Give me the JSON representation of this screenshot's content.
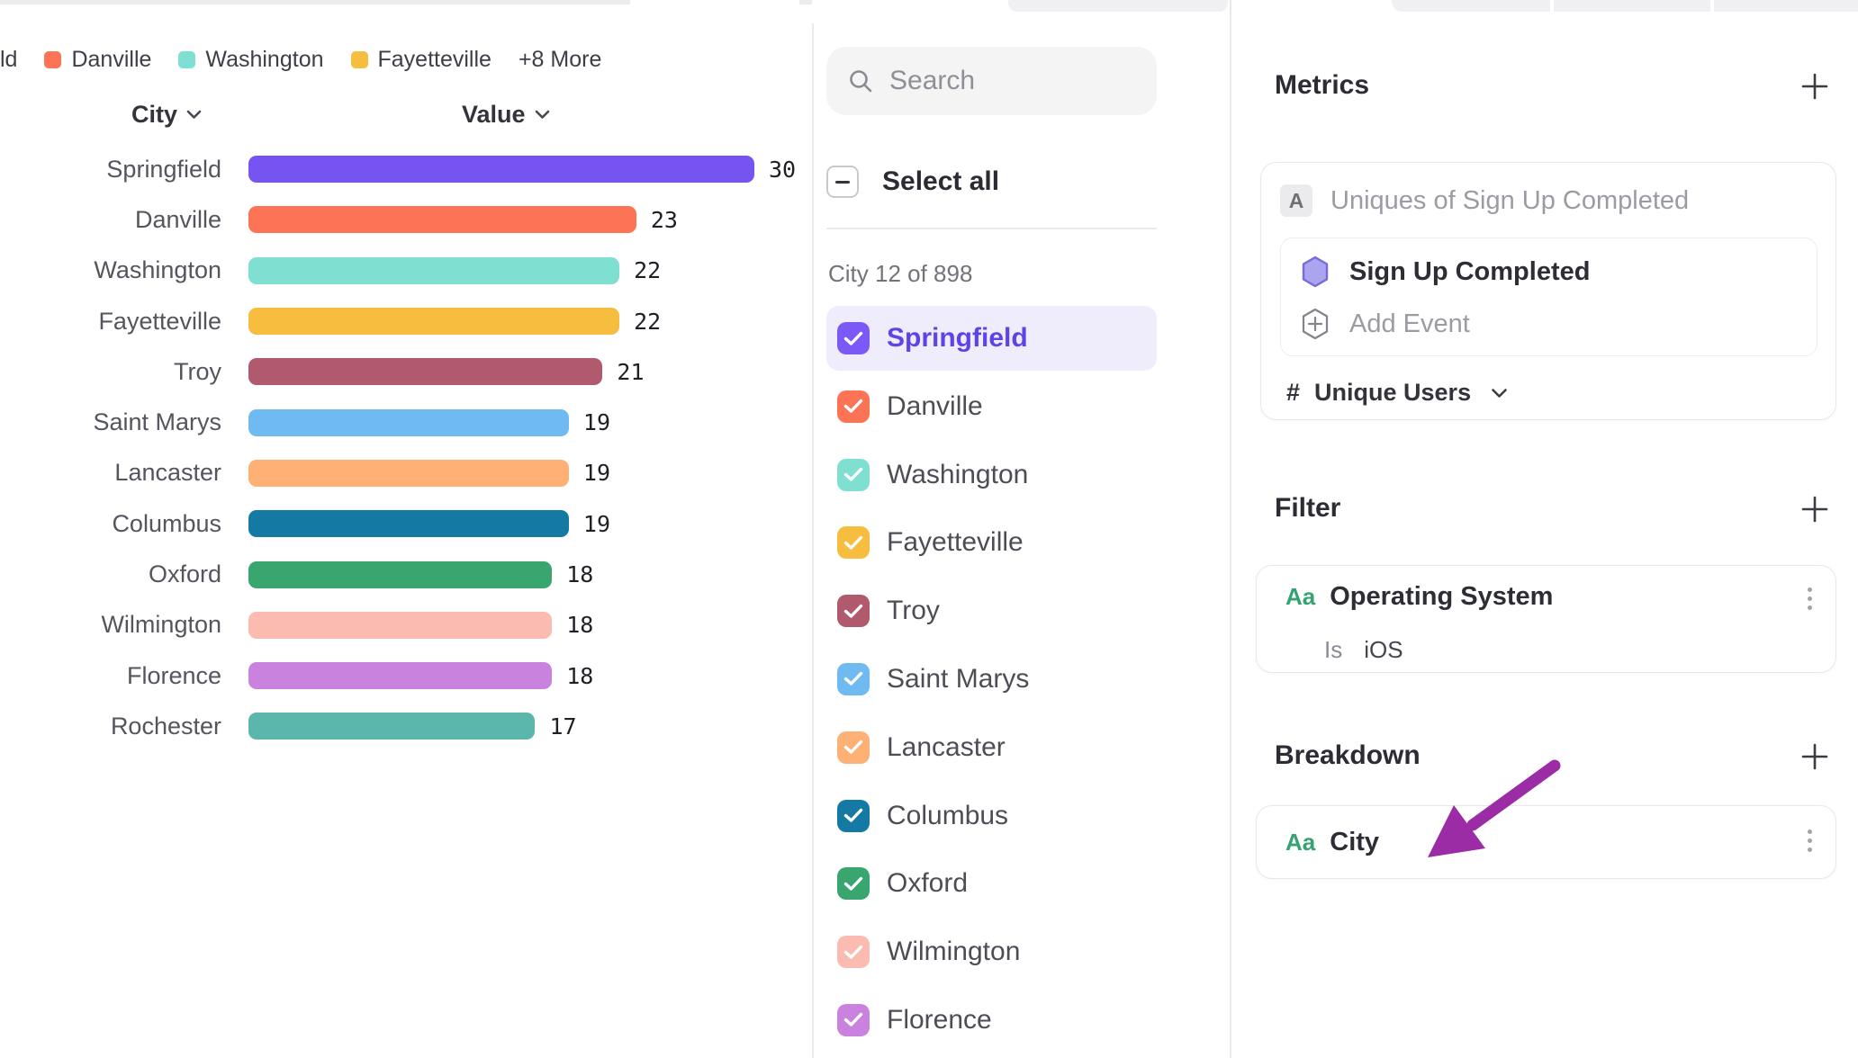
{
  "chart": {
    "legend": {
      "overflow_label": "ld",
      "items": [
        {
          "label": "Danville",
          "color": "#FC7356"
        },
        {
          "label": "Washington",
          "color": "#7FDFD0"
        },
        {
          "label": "Fayetteville",
          "color": "#F6BD3E"
        }
      ],
      "more_label": "+8 More"
    },
    "columns": {
      "city": "City",
      "value": "Value"
    }
  },
  "chart_data": {
    "type": "bar",
    "orientation": "horizontal",
    "title": "",
    "xlabel": "Value",
    "ylabel": "City",
    "xlim": [
      0,
      30
    ],
    "grid": false,
    "legend_position": "top",
    "categories": [
      "Springfield",
      "Danville",
      "Washington",
      "Fayetteville",
      "Troy",
      "Saint Marys",
      "Lancaster",
      "Columbus",
      "Oxford",
      "Wilmington",
      "Florence",
      "Rochester"
    ],
    "values": [
      30,
      23,
      22,
      22,
      21,
      19,
      19,
      19,
      18,
      18,
      18,
      17
    ],
    "colors": [
      "#7554F2",
      "#FC7356",
      "#7FDFD0",
      "#F6BD3E",
      "#B15A6D",
      "#6FBBF1",
      "#FEB075",
      "#147AA3",
      "#39A670",
      "#FBBBB1",
      "#C982DE",
      "#5BB6AB"
    ]
  },
  "picker": {
    "search_placeholder": "Search",
    "select_all_label": "Select all",
    "count_label": "City 12 of 898",
    "items": [
      {
        "label": "Springfield",
        "color": "#7A59F6",
        "checked": true,
        "selected": true
      },
      {
        "label": "Danville",
        "color": "#FC7356",
        "checked": true,
        "selected": false
      },
      {
        "label": "Washington",
        "color": "#7FDFD0",
        "checked": true,
        "selected": false
      },
      {
        "label": "Fayetteville",
        "color": "#F6BD3E",
        "checked": true,
        "selected": false
      },
      {
        "label": "Troy",
        "color": "#B15A6D",
        "checked": true,
        "selected": false
      },
      {
        "label": "Saint Marys",
        "color": "#6FBBF1",
        "checked": true,
        "selected": false
      },
      {
        "label": "Lancaster",
        "color": "#FEB075",
        "checked": true,
        "selected": false
      },
      {
        "label": "Columbus",
        "color": "#147AA3",
        "checked": true,
        "selected": false
      },
      {
        "label": "Oxford",
        "color": "#39A670",
        "checked": true,
        "selected": false
      },
      {
        "label": "Wilmington",
        "color": "#FBBBB1",
        "checked": true,
        "selected": false
      },
      {
        "label": "Florence",
        "color": "#C982DE",
        "checked": true,
        "selected": false
      }
    ]
  },
  "inspector": {
    "metrics": {
      "header": "Metrics",
      "badge": "A",
      "metric_name": "Uniques of Sign Up Completed",
      "event_name": "Sign Up Completed",
      "add_event_label": "Add Event",
      "measure_prefix": "#",
      "measure": "Unique Users"
    },
    "filter": {
      "header": "Filter",
      "type_badge": "Aa",
      "property": "Operating System",
      "operator": "Is",
      "value": "iOS"
    },
    "breakdown": {
      "header": "Breakdown",
      "type_badge": "Aa",
      "property": "City"
    }
  },
  "colors": {
    "selected_row_bg": "#EFEDFC",
    "selected_text": "#5F43E8",
    "annotation_arrow": "#9C2BA6",
    "aa_badge_green": "#35A273"
  }
}
